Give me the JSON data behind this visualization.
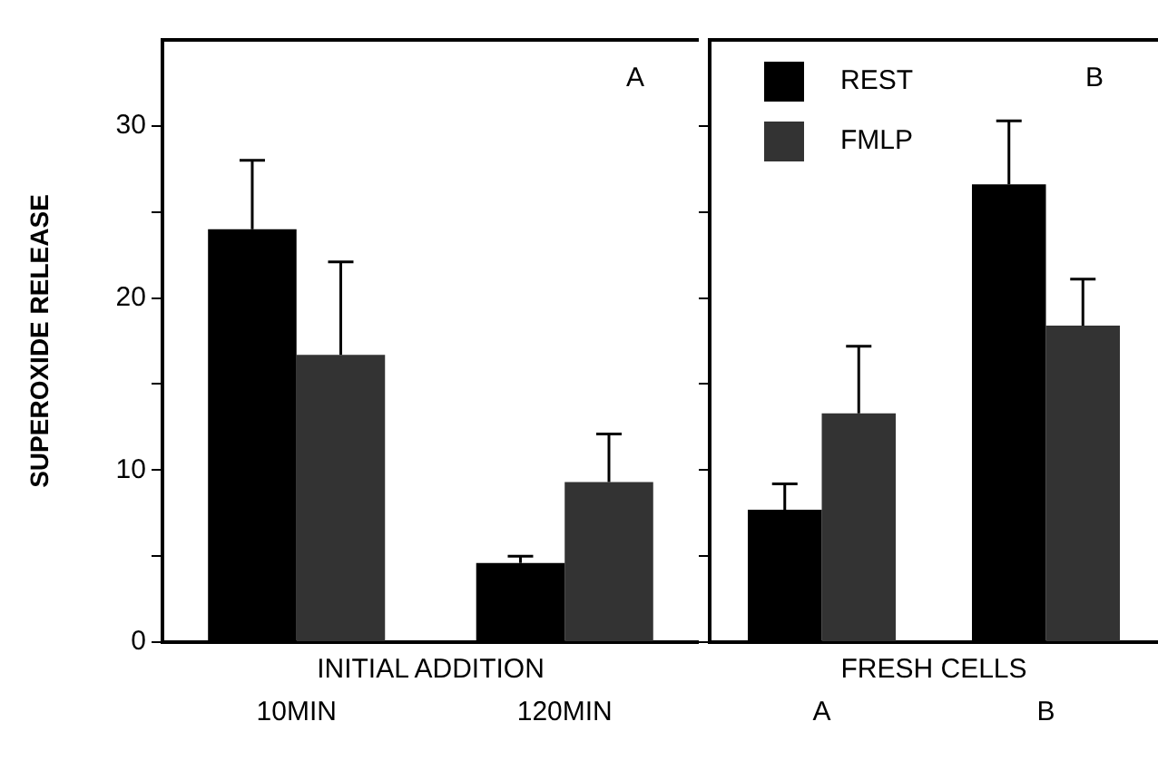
{
  "chart_data": [
    {
      "type": "bar",
      "xlabel": "INITIAL ADDITION",
      "ylabel": "SUPEROXIDE RELEASE",
      "annotations": [
        "A"
      ],
      "categories": [
        "10MIN",
        "120MIN"
      ],
      "series": [
        {
          "color": "#000000",
          "values": [
            24.0,
            4.6
          ],
          "errors": [
            [
              24.0,
              28.0
            ],
            [
              4.6,
              5.0
            ]
          ]
        },
        {
          "color": "#333333",
          "values": [
            16.7,
            9.3
          ],
          "errors": [
            [
              16.7,
              22.1
            ],
            [
              9.3,
              12.1
            ]
          ]
        }
      ],
      "ylim": [
        0,
        35
      ],
      "yticks": [
        0,
        {
          "value": 5,
          "label": null
        },
        10,
        {
          "value": 15,
          "label": null
        },
        20,
        {
          "value": 25,
          "label": null
        },
        30
      ]
    },
    {
      "type": "bar",
      "xlabel": "FRESH CELLS",
      "annotations": [
        "B"
      ],
      "categories": [
        "A",
        "B"
      ],
      "series": [
        {
          "name": "REST",
          "color": "#000000",
          "values": [
            7.7,
            26.6
          ],
          "errors": [
            [
              7.7,
              9.2
            ],
            [
              26.6,
              30.3
            ]
          ]
        },
        {
          "name": "FMLP",
          "color": "#333333",
          "values": [
            13.3,
            18.4
          ],
          "errors": [
            [
              13.3,
              17.2
            ],
            [
              18.4,
              21.1
            ]
          ]
        }
      ],
      "ylim": [
        0,
        35
      ],
      "yticks": [
        0,
        {
          "value": 5,
          "label": null
        },
        10,
        {
          "value": 15,
          "label": null
        },
        20,
        {
          "value": 25,
          "label": null
        },
        30
      ],
      "tick_labels": "x",
      "legend": "top left"
    }
  ]
}
